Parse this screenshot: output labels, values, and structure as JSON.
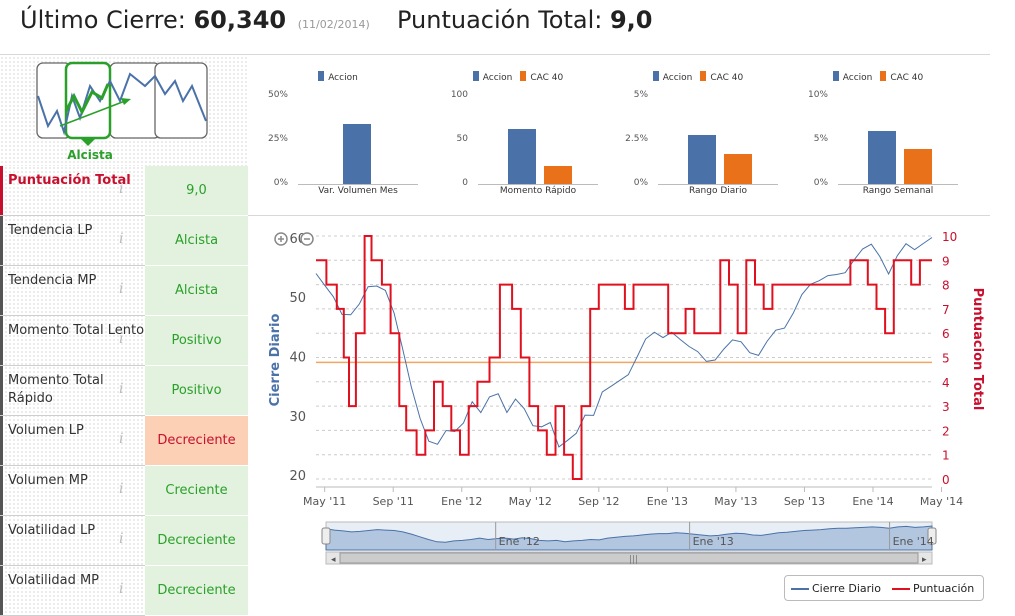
{
  "header": {
    "close_label": "Último Cierre:",
    "close_value": "60,340",
    "close_date": "(11/02/2014)",
    "score_label": "Puntuación Total:",
    "score_value": "9,0"
  },
  "trend_logo": {
    "label": "Alcista"
  },
  "mini_charts": [
    {
      "legend": [
        "Accion"
      ],
      "y_ticks": [
        "50%",
        "25%",
        "0%"
      ],
      "ymax": 50,
      "values": [
        34
      ],
      "category": "Var. Volumen Mes"
    },
    {
      "legend": [
        "Accion",
        "CAC 40"
      ],
      "y_ticks": [
        "100",
        "50",
        "0"
      ],
      "ymax": 100,
      "values": [
        63,
        20
      ],
      "category": "Momento Rápido"
    },
    {
      "legend": [
        "Accion",
        "CAC 40"
      ],
      "y_ticks": [
        "5%",
        "2.5%",
        "0%"
      ],
      "ymax": 5,
      "values": [
        2.8,
        1.7
      ],
      "category": "Rango Diario"
    },
    {
      "legend": [
        "Accion",
        "CAC 40"
      ],
      "y_ticks": [
        "10%",
        "5%",
        "0%"
      ],
      "ymax": 10,
      "values": [
        6.0,
        4.0
      ],
      "category": "Rango Semanal"
    }
  ],
  "indicators": [
    {
      "label": "Puntuación Total",
      "value": "9,0"
    },
    {
      "label": "Tendencia LP",
      "value": "Alcista"
    },
    {
      "label": "Tendencia MP",
      "value": "Alcista"
    },
    {
      "label": "Momento Total Lento",
      "value": "Positivo"
    },
    {
      "label": "Momento Total Rápido",
      "value": "Positivo"
    },
    {
      "label": "Volumen LP",
      "value": "Decreciente"
    },
    {
      "label": "Volumen MP",
      "value": "Creciente"
    },
    {
      "label": "Volatilidad LP",
      "value": "Decreciente"
    },
    {
      "label": "Volatilidad MP",
      "value": "Decreciente"
    }
  ],
  "colors": {
    "accion": "#4a72a8",
    "cac": "#e8711a",
    "score": "#e0101e",
    "price": "#4a72a8",
    "green": "#2aa02a",
    "threshold": "#f4a460"
  },
  "chart_data": {
    "type": "line",
    "title": "",
    "x_ticks": [
      "May '11",
      "Sep '11",
      "Ene '12",
      "May '12",
      "Sep '12",
      "Ene '13",
      "May '13",
      "Sep '13",
      "Ene '14",
      "May '14"
    ],
    "ylabel": "Cierre Diario",
    "y2label": "Puntuacion Total",
    "ylim": [
      18,
      61
    ],
    "y2lim": [
      0,
      10
    ],
    "y_ticks": [
      "20",
      "30",
      "40",
      "50",
      "60"
    ],
    "y2_ticks": [
      "0",
      "1",
      "2",
      "3",
      "4",
      "5",
      "6",
      "7",
      "8",
      "9",
      "10"
    ],
    "threshold_y2": 4.8,
    "series": [
      {
        "name": "Cierre Diario",
        "x": [
          0,
          0.5,
          1,
          1.5,
          2,
          2.5,
          3,
          3.5,
          4,
          4.5,
          5,
          5.5,
          6,
          6.5,
          7,
          7.5,
          8,
          8.5,
          9,
          9.5,
          10,
          10.5,
          11,
          11.5,
          12,
          12.5,
          13,
          13.5,
          14,
          14.5,
          15,
          15.5,
          16,
          16.5,
          17,
          17.5,
          18,
          18.5,
          19,
          19.5,
          20,
          20.5,
          21,
          21.5,
          22,
          22.5,
          23,
          23.5,
          24,
          24.5,
          25,
          25.5,
          26,
          26.5,
          27,
          27.5,
          28,
          28.5,
          29,
          29.5,
          30,
          30.5,
          31,
          31.5,
          32,
          32.5,
          33,
          33.5,
          34,
          34.5,
          35,
          35.5
        ],
        "values": [
          54,
          51,
          49,
          47,
          48,
          50,
          52,
          51,
          50,
          47,
          42,
          36,
          30,
          25,
          24,
          27,
          28,
          30,
          33,
          30,
          32,
          33,
          31,
          34,
          32,
          28,
          27,
          28,
          25,
          27,
          28,
          30,
          29,
          33,
          35,
          37,
          38,
          40,
          42,
          43,
          43,
          45,
          44,
          42,
          40,
          38,
          39,
          42,
          44,
          43,
          40,
          39,
          42,
          45,
          46,
          48,
          50,
          51,
          52,
          54,
          55,
          55,
          56,
          57,
          58,
          57,
          55,
          58,
          59,
          57,
          58,
          60
        ]
      },
      {
        "name": "Puntuación",
        "x": [
          0,
          0.6,
          1.2,
          1.6,
          1.9,
          2.3,
          2.8,
          3.2,
          3.8,
          4.3,
          4.8,
          5.2,
          5.8,
          6.3,
          6.8,
          7.3,
          7.8,
          8.3,
          8.8,
          9.3,
          10,
          10.6,
          11.3,
          11.8,
          12.3,
          12.8,
          13.3,
          13.8,
          14.3,
          14.8,
          15.3,
          15.8,
          16.3,
          16.8,
          17.3,
          17.8,
          18.3,
          18.8,
          19.3,
          19.8,
          20.3,
          20.8,
          21.3,
          21.8,
          22.3,
          22.8,
          23.3,
          23.8,
          24.3,
          24.8,
          25.3,
          25.8,
          26.3,
          26.8,
          27.3,
          27.8,
          28.3,
          28.8,
          29.3,
          29.8,
          30.3,
          30.8,
          31.3,
          31.8,
          32.3,
          32.8,
          33.3,
          33.8,
          34.3,
          34.8,
          35.3,
          35.5
        ],
        "values": [
          9,
          8,
          7,
          5,
          3,
          6,
          10,
          9,
          8,
          6,
          3,
          2,
          1,
          2,
          4,
          3,
          2,
          1,
          3,
          4,
          5,
          8,
          7,
          5,
          3,
          2,
          1,
          3,
          1,
          0,
          3,
          7,
          8,
          8,
          8,
          7,
          8,
          8,
          8,
          8,
          6,
          6,
          7,
          6,
          6,
          6,
          9,
          8,
          6,
          9,
          8,
          7,
          8,
          8,
          8,
          8,
          8,
          8,
          8,
          8,
          8,
          9,
          9,
          8,
          7,
          6,
          9,
          9,
          8,
          9,
          9,
          9
        ]
      }
    ],
    "navigator_ticks": [
      "Ene '12",
      "Ene '13",
      "Ene '14"
    ],
    "legend": [
      "Cierre Diario",
      "Puntuación"
    ]
  }
}
